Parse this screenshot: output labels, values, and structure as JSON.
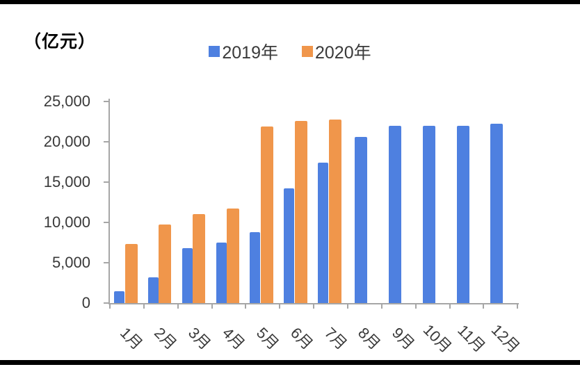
{
  "unit_label": "（亿元）",
  "colors": {
    "series_2019": "#4E80E0",
    "series_2020": "#F0964B",
    "axis": "#A6A6A6",
    "text": "#393939",
    "frame_rule": "#000000"
  },
  "chart_data": {
    "type": "bar",
    "title": "",
    "unit_label": "（亿元）",
    "xlabel": "",
    "ylabel": "（亿元）",
    "categories": [
      "1月",
      "2月",
      "3月",
      "4月",
      "5月",
      "6月",
      "7月",
      "8月",
      "9月",
      "10月",
      "11月",
      "12月"
    ],
    "series": [
      {
        "name": "2019年",
        "color": "#4E80E0",
        "values": [
          1500,
          3200,
          6800,
          7500,
          8800,
          14200,
          17400,
          20600,
          22000,
          22000,
          22000,
          22200
        ]
      },
      {
        "name": "2020年",
        "color": "#F0964B",
        "values": [
          7300,
          9700,
          11000,
          11700,
          21900,
          22600,
          22800,
          null,
          null,
          null,
          null,
          null
        ]
      }
    ],
    "ylim": [
      0,
      25000
    ],
    "y_ticks": [
      0,
      5000,
      10000,
      15000,
      20000,
      25000
    ],
    "y_tick_labels": [
      "0",
      "5,000",
      "10,000",
      "15,000",
      "20,000",
      "25,000"
    ],
    "grid": false,
    "legend_position": "top-center",
    "x_label_rotation_deg": 45
  }
}
